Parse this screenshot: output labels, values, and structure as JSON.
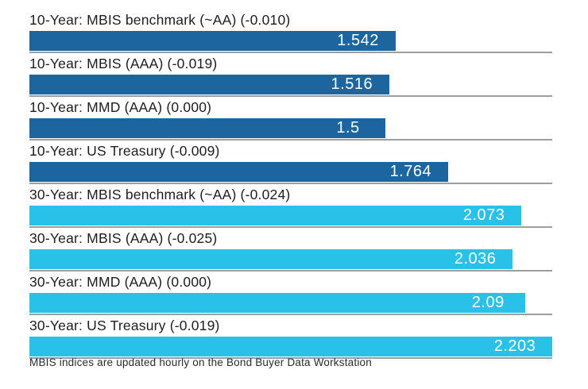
{
  "chart_data": {
    "type": "bar",
    "orientation": "horizontal",
    "title": "",
    "xlabel": "",
    "ylabel": "",
    "axis_max": 2.203,
    "grid": false,
    "legend": false,
    "bars": [
      {
        "label": "10-Year: MBIS benchmark (~AA) (-0.010)",
        "value": 1.542,
        "display": "1.542",
        "group": "10-year"
      },
      {
        "label": "10-Year: MBIS (AAA) (-0.019)",
        "value": 1.516,
        "display": "1.516",
        "group": "10-year"
      },
      {
        "label": "10-Year: MMD (AAA) (0.000)",
        "value": 1.5,
        "display": "1.5",
        "group": "10-year"
      },
      {
        "label": "10-Year: US Treasury (-0.009)",
        "value": 1.764,
        "display": "1.764",
        "group": "10-year"
      },
      {
        "label": "30-Year: MBIS benchmark (~AA) (-0.024)",
        "value": 2.073,
        "display": "2.073",
        "group": "30-year"
      },
      {
        "label": "30-Year: MBIS (AAA) (-0.025)",
        "value": 2.036,
        "display": "2.036",
        "group": "30-year"
      },
      {
        "label": "30-Year: MMD (AAA) (0.000)",
        "value": 2.09,
        "display": "2.09",
        "group": "30-year"
      },
      {
        "label": "30-Year: US Treasury (-0.019)",
        "value": 2.203,
        "display": "2.203",
        "group": "30-year"
      }
    ],
    "colors": {
      "10-year": "#1d659e",
      "30-year": "#29c1e8",
      "separator": "#9e9e9e",
      "value_text": "#ffffff",
      "label_text": "#1e1e1e"
    },
    "footnote": "MBIS indices are updated hourly on the Bond Buyer Data Workstation"
  }
}
